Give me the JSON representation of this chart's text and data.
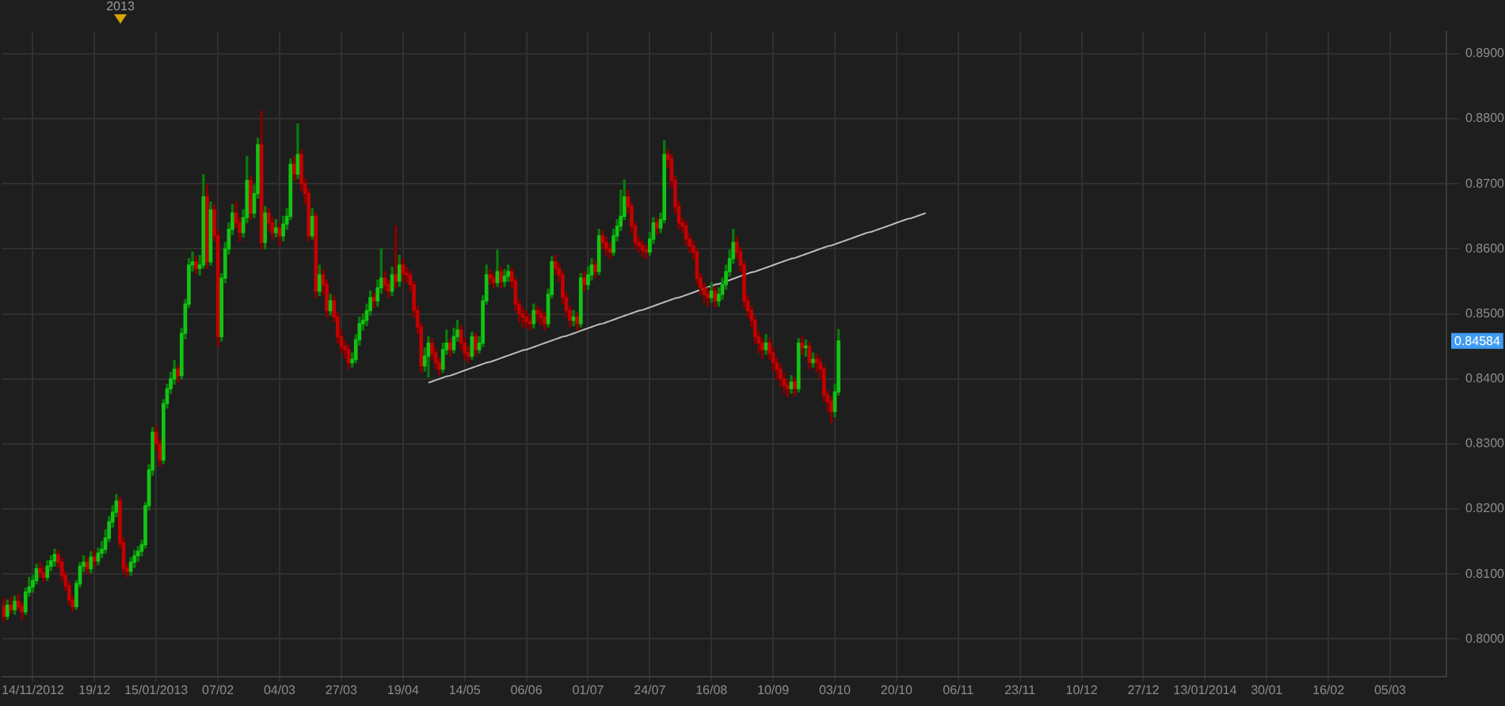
{
  "chart_data": {
    "type": "candlestick",
    "categories": [
      null,
      null,
      null,
      null,
      null,
      null,
      null,
      null,
      "14/11/2012",
      null,
      null,
      null,
      null,
      null,
      null,
      null,
      null,
      null,
      null,
      null,
      null,
      null,
      null,
      null,
      null,
      "19/12",
      null,
      null,
      null,
      null,
      null,
      null,
      null,
      null,
      null,
      null,
      null,
      null,
      null,
      null,
      null,
      null,
      "15/01/2013",
      null,
      null,
      null,
      null,
      null,
      null,
      null,
      null,
      null,
      null,
      null,
      null,
      null,
      null,
      null,
      null,
      "07/02",
      null,
      null,
      null,
      null,
      null,
      null,
      null,
      null,
      null,
      null,
      null,
      null,
      null,
      null,
      null,
      null,
      "04/03",
      null,
      null,
      null,
      null,
      null,
      null,
      null,
      null,
      null,
      null,
      null,
      null,
      null,
      null,
      null,
      null,
      "27/03",
      null,
      null,
      null,
      null,
      null,
      null,
      null,
      null,
      null,
      null,
      null,
      null,
      null,
      null,
      null,
      null,
      "19/04",
      null,
      null,
      null,
      null,
      null,
      null,
      null,
      null,
      null,
      null,
      null,
      null,
      null,
      null,
      null,
      null,
      "14/05",
      null,
      null,
      null,
      null,
      null,
      null,
      null,
      null,
      null,
      null,
      null,
      null,
      null,
      null,
      null,
      null,
      "06/06",
      null,
      null,
      null,
      null,
      null,
      null,
      null,
      null,
      null,
      null,
      null,
      null,
      null,
      null,
      null,
      null,
      "01/07",
      null,
      null,
      null,
      null,
      null,
      null,
      null,
      null,
      null,
      null,
      null,
      null,
      null,
      null,
      null,
      null,
      "24/07",
      null,
      null,
      null,
      null,
      null,
      null,
      null,
      null,
      null,
      null,
      null,
      null,
      null,
      null,
      null,
      null,
      "16/08",
      null,
      null,
      null,
      null,
      null,
      null,
      null,
      null,
      null,
      null,
      null,
      null,
      null,
      null,
      null,
      null,
      "10/09",
      null,
      null,
      null,
      null,
      null,
      null,
      null,
      null,
      null,
      null,
      null,
      null,
      null,
      null,
      null,
      null,
      "03/10",
      null,
      null,
      null,
      null,
      null,
      null,
      null,
      null,
      null,
      null,
      null,
      null,
      null,
      null,
      null,
      null,
      "20/10",
      null,
      null,
      null,
      null,
      null,
      null,
      null,
      null,
      null,
      null,
      null,
      null,
      null,
      null,
      null,
      null,
      "06/11",
      null,
      null,
      null,
      null,
      null,
      null,
      null,
      null,
      null,
      null,
      null,
      null,
      null,
      null,
      null,
      null,
      "23/11",
      null,
      null,
      null,
      null,
      null,
      null,
      null,
      null,
      null,
      null,
      null,
      null,
      null,
      null,
      null,
      null,
      "10/12",
      null,
      null,
      null,
      null,
      null,
      null,
      null,
      null,
      null,
      null,
      null,
      null,
      null,
      null,
      null,
      null,
      "27/12",
      null,
      null,
      null,
      null,
      null,
      null,
      null,
      null,
      null,
      null,
      null,
      null,
      null,
      null,
      null,
      null,
      "13/01/2014",
      null,
      null,
      null,
      null,
      null,
      null,
      null,
      null,
      null,
      null,
      null,
      null,
      null,
      null,
      null,
      null,
      "30/01",
      null,
      null,
      null,
      null,
      null,
      null,
      null,
      null,
      null,
      null,
      null,
      null,
      null,
      null,
      null,
      null,
      "16/02",
      null,
      null,
      null,
      null,
      null,
      null,
      null,
      null,
      null,
      null,
      null,
      null,
      null,
      null,
      null,
      null,
      "05/03",
      null,
      null,
      null,
      null,
      null,
      null,
      null,
      null,
      null,
      null,
      null,
      null,
      null,
      null,
      null
    ],
    "ohlc": [
      [
        0.805,
        0.8062,
        0.8028,
        0.8035
      ],
      [
        0.8035,
        0.806,
        0.803,
        0.8052
      ],
      [
        0.8052,
        0.8064,
        0.804,
        0.8045
      ],
      [
        0.8045,
        0.8066,
        0.8038,
        0.8058
      ],
      [
        0.8058,
        0.8068,
        0.8044,
        0.805
      ],
      [
        0.805,
        0.8056,
        0.803,
        0.8042
      ],
      [
        0.8042,
        0.8078,
        0.8038,
        0.8072
      ],
      [
        0.8072,
        0.8095,
        0.8066,
        0.808
      ],
      [
        0.808,
        0.8098,
        0.8072,
        0.809
      ],
      [
        0.809,
        0.8115,
        0.8085,
        0.8108
      ],
      [
        0.8108,
        0.8118,
        0.8095,
        0.8102
      ],
      [
        0.8102,
        0.811,
        0.8088,
        0.8095
      ],
      [
        0.8095,
        0.812,
        0.809,
        0.8112
      ],
      [
        0.8112,
        0.8128,
        0.8105,
        0.812
      ],
      [
        0.812,
        0.8138,
        0.8112,
        0.813
      ],
      [
        0.813,
        0.8136,
        0.811,
        0.8118
      ],
      [
        0.8118,
        0.8124,
        0.809,
        0.8098
      ],
      [
        0.8098,
        0.8104,
        0.8075,
        0.8082
      ],
      [
        0.8082,
        0.8088,
        0.8052,
        0.806
      ],
      [
        0.806,
        0.8066,
        0.8043,
        0.805
      ],
      [
        0.805,
        0.809,
        0.8046,
        0.8085
      ],
      [
        0.8085,
        0.8118,
        0.808,
        0.8112
      ],
      [
        0.8112,
        0.8128,
        0.8104,
        0.8118
      ],
      [
        0.8118,
        0.8124,
        0.81,
        0.8108
      ],
      [
        0.8108,
        0.8134,
        0.8102,
        0.8126
      ],
      [
        0.8126,
        0.8135,
        0.8112,
        0.812
      ],
      [
        0.812,
        0.814,
        0.8114,
        0.8132
      ],
      [
        0.8132,
        0.815,
        0.8125,
        0.8138
      ],
      [
        0.8138,
        0.8168,
        0.8132,
        0.8155
      ],
      [
        0.8155,
        0.8188,
        0.815,
        0.818
      ],
      [
        0.818,
        0.8205,
        0.8172,
        0.8195
      ],
      [
        0.8195,
        0.8222,
        0.8188,
        0.8212
      ],
      [
        0.8212,
        0.8218,
        0.814,
        0.8148
      ],
      [
        0.8148,
        0.8155,
        0.81,
        0.8108
      ],
      [
        0.8108,
        0.8115,
        0.8096,
        0.8104
      ],
      [
        0.8104,
        0.8125,
        0.8098,
        0.8118
      ],
      [
        0.8118,
        0.8136,
        0.811,
        0.8128
      ],
      [
        0.8128,
        0.8142,
        0.812,
        0.8135
      ],
      [
        0.8135,
        0.8152,
        0.8128,
        0.8145
      ],
      [
        0.8145,
        0.821,
        0.814,
        0.8205
      ],
      [
        0.8205,
        0.8268,
        0.8198,
        0.826
      ],
      [
        0.826,
        0.8325,
        0.8252,
        0.8318
      ],
      [
        0.8318,
        0.8328,
        0.829,
        0.83
      ],
      [
        0.83,
        0.8308,
        0.8266,
        0.8275
      ],
      [
        0.8275,
        0.8368,
        0.827,
        0.8362
      ],
      [
        0.8362,
        0.8392,
        0.8355,
        0.8385
      ],
      [
        0.8385,
        0.841,
        0.8378,
        0.84
      ],
      [
        0.84,
        0.8428,
        0.8392,
        0.8415
      ],
      [
        0.8415,
        0.842,
        0.8395,
        0.8405
      ],
      [
        0.8405,
        0.8478,
        0.84,
        0.847
      ],
      [
        0.847,
        0.8522,
        0.8462,
        0.8515
      ],
      [
        0.8515,
        0.8585,
        0.851,
        0.8575
      ],
      [
        0.8575,
        0.8595,
        0.8566,
        0.858
      ],
      [
        0.858,
        0.8588,
        0.8562,
        0.857
      ],
      [
        0.857,
        0.859,
        0.856,
        0.8575
      ],
      [
        0.8575,
        0.8714,
        0.857,
        0.868
      ],
      [
        0.868,
        0.8698,
        0.857,
        0.858
      ],
      [
        0.858,
        0.8672,
        0.8575,
        0.866
      ],
      [
        0.866,
        0.8668,
        0.8612,
        0.862
      ],
      [
        0.862,
        0.8628,
        0.845,
        0.8465
      ],
      [
        0.8465,
        0.8562,
        0.8458,
        0.8555
      ],
      [
        0.8555,
        0.861,
        0.8548,
        0.86
      ],
      [
        0.86,
        0.864,
        0.8592,
        0.863
      ],
      [
        0.863,
        0.8668,
        0.8622,
        0.8655
      ],
      [
        0.8655,
        0.8672,
        0.8632,
        0.864
      ],
      [
        0.864,
        0.8648,
        0.8612,
        0.8625
      ],
      [
        0.8625,
        0.866,
        0.8618,
        0.8648
      ],
      [
        0.8648,
        0.8742,
        0.864,
        0.8705
      ],
      [
        0.8705,
        0.8712,
        0.8645,
        0.8655
      ],
      [
        0.8655,
        0.8698,
        0.8648,
        0.8685
      ],
      [
        0.8685,
        0.877,
        0.8678,
        0.876
      ],
      [
        0.876,
        0.8812,
        0.86,
        0.861
      ],
      [
        0.861,
        0.8665,
        0.86,
        0.8655
      ],
      [
        0.8655,
        0.8662,
        0.8628,
        0.864
      ],
      [
        0.864,
        0.8648,
        0.8615,
        0.8625
      ],
      [
        0.8625,
        0.8645,
        0.8618,
        0.8632
      ],
      [
        0.8632,
        0.864,
        0.8605,
        0.862
      ],
      [
        0.862,
        0.865,
        0.8612,
        0.8638
      ],
      [
        0.8638,
        0.8662,
        0.863,
        0.865
      ],
      [
        0.865,
        0.8738,
        0.8645,
        0.873
      ],
      [
        0.873,
        0.8742,
        0.8705,
        0.8715
      ],
      [
        0.8715,
        0.8792,
        0.8708,
        0.8745
      ],
      [
        0.8745,
        0.8752,
        0.869,
        0.87
      ],
      [
        0.87,
        0.8708,
        0.867,
        0.8685
      ],
      [
        0.8685,
        0.8692,
        0.8612,
        0.862
      ],
      [
        0.862,
        0.8662,
        0.8615,
        0.865
      ],
      [
        0.865,
        0.8655,
        0.8525,
        0.8535
      ],
      [
        0.8535,
        0.8575,
        0.8528,
        0.856
      ],
      [
        0.856,
        0.8568,
        0.853,
        0.8545
      ],
      [
        0.8545,
        0.8552,
        0.8495,
        0.8505
      ],
      [
        0.8505,
        0.853,
        0.8498,
        0.852
      ],
      [
        0.852,
        0.8528,
        0.8488,
        0.8495
      ],
      [
        0.8495,
        0.8502,
        0.8455,
        0.8465
      ],
      [
        0.8465,
        0.8475,
        0.844,
        0.845
      ],
      [
        0.845,
        0.8458,
        0.8432,
        0.8445
      ],
      [
        0.8445,
        0.8452,
        0.8415,
        0.8425
      ],
      [
        0.8425,
        0.844,
        0.8418,
        0.843
      ],
      [
        0.843,
        0.8468,
        0.8425,
        0.846
      ],
      [
        0.846,
        0.8495,
        0.8452,
        0.8485
      ],
      [
        0.8485,
        0.85,
        0.8475,
        0.849
      ],
      [
        0.849,
        0.8515,
        0.8482,
        0.8505
      ],
      [
        0.8505,
        0.8535,
        0.8498,
        0.8525
      ],
      [
        0.8525,
        0.8532,
        0.851,
        0.852
      ],
      [
        0.852,
        0.8552,
        0.8512,
        0.854
      ],
      [
        0.854,
        0.86,
        0.8532,
        0.8555
      ],
      [
        0.8555,
        0.8565,
        0.8536,
        0.8545
      ],
      [
        0.8545,
        0.8552,
        0.8525,
        0.8535
      ],
      [
        0.8535,
        0.8572,
        0.8528,
        0.856
      ],
      [
        0.856,
        0.8635,
        0.854,
        0.855
      ],
      [
        0.855,
        0.859,
        0.8542,
        0.8575
      ],
      [
        0.8575,
        0.8585,
        0.855,
        0.8562
      ],
      [
        0.8562,
        0.8572,
        0.8548,
        0.856
      ],
      [
        0.856,
        0.8566,
        0.8535,
        0.8545
      ],
      [
        0.8545,
        0.855,
        0.8495,
        0.8505
      ],
      [
        0.8505,
        0.8512,
        0.847,
        0.848
      ],
      [
        0.848,
        0.8486,
        0.841,
        0.842
      ],
      [
        0.842,
        0.8448,
        0.8412,
        0.8435
      ],
      [
        0.8435,
        0.8465,
        0.8403,
        0.8455
      ],
      [
        0.8455,
        0.8462,
        0.843,
        0.844
      ],
      [
        0.844,
        0.8448,
        0.8415,
        0.8425
      ],
      [
        0.8425,
        0.8432,
        0.8406,
        0.8415
      ],
      [
        0.8415,
        0.8455,
        0.841,
        0.8445
      ],
      [
        0.8445,
        0.8475,
        0.8438,
        0.8455
      ],
      [
        0.8455,
        0.8462,
        0.8435,
        0.8445
      ],
      [
        0.8445,
        0.8478,
        0.844,
        0.8465
      ],
      [
        0.8465,
        0.849,
        0.8458,
        0.8475
      ],
      [
        0.8475,
        0.8482,
        0.8445,
        0.8455
      ],
      [
        0.8455,
        0.8462,
        0.843,
        0.844
      ],
      [
        0.844,
        0.845,
        0.8425,
        0.8435
      ],
      [
        0.8435,
        0.8472,
        0.843,
        0.8465
      ],
      [
        0.8465,
        0.847,
        0.8436,
        0.8445
      ],
      [
        0.8445,
        0.8465,
        0.844,
        0.8455
      ],
      [
        0.8455,
        0.8528,
        0.845,
        0.852
      ],
      [
        0.852,
        0.8575,
        0.8515,
        0.856
      ],
      [
        0.856,
        0.8568,
        0.8545,
        0.8555
      ],
      [
        0.8555,
        0.8562,
        0.854,
        0.8548
      ],
      [
        0.8548,
        0.8598,
        0.8542,
        0.8565
      ],
      [
        0.8565,
        0.8572,
        0.854,
        0.855
      ],
      [
        0.855,
        0.8568,
        0.8542,
        0.8558
      ],
      [
        0.8558,
        0.8575,
        0.855,
        0.8565
      ],
      [
        0.8565,
        0.857,
        0.854,
        0.855
      ],
      [
        0.855,
        0.8556,
        0.8505,
        0.8515
      ],
      [
        0.8515,
        0.8522,
        0.8488,
        0.85
      ],
      [
        0.85,
        0.851,
        0.848,
        0.8495
      ],
      [
        0.8495,
        0.8505,
        0.8478,
        0.8488
      ],
      [
        0.8488,
        0.8498,
        0.8475,
        0.8485
      ],
      [
        0.8485,
        0.8515,
        0.8478,
        0.8505
      ],
      [
        0.8505,
        0.8512,
        0.8488,
        0.85
      ],
      [
        0.85,
        0.8508,
        0.8482,
        0.8495
      ],
      [
        0.8495,
        0.8502,
        0.8475,
        0.8485
      ],
      [
        0.8485,
        0.8538,
        0.848,
        0.853
      ],
      [
        0.853,
        0.8588,
        0.8525,
        0.858
      ],
      [
        0.858,
        0.859,
        0.856,
        0.857
      ],
      [
        0.857,
        0.8578,
        0.855,
        0.856
      ],
      [
        0.856,
        0.8566,
        0.8515,
        0.8525
      ],
      [
        0.8525,
        0.8532,
        0.8495,
        0.8505
      ],
      [
        0.8505,
        0.8512,
        0.848,
        0.849
      ],
      [
        0.849,
        0.8505,
        0.8482,
        0.8495
      ],
      [
        0.8495,
        0.8502,
        0.8475,
        0.8485
      ],
      [
        0.8485,
        0.8562,
        0.848,
        0.8555
      ],
      [
        0.8555,
        0.8565,
        0.8535,
        0.8545
      ],
      [
        0.8545,
        0.8572,
        0.8538,
        0.856
      ],
      [
        0.856,
        0.8585,
        0.8552,
        0.8575
      ],
      [
        0.8575,
        0.8582,
        0.8555,
        0.8565
      ],
      [
        0.8565,
        0.863,
        0.856,
        0.862
      ],
      [
        0.862,
        0.8628,
        0.86,
        0.861
      ],
      [
        0.861,
        0.8618,
        0.859,
        0.86
      ],
      [
        0.86,
        0.8608,
        0.8585,
        0.8595
      ],
      [
        0.8595,
        0.863,
        0.859,
        0.862
      ],
      [
        0.862,
        0.8645,
        0.8612,
        0.8635
      ],
      [
        0.8635,
        0.869,
        0.8628,
        0.865
      ],
      [
        0.865,
        0.8706,
        0.8645,
        0.868
      ],
      [
        0.868,
        0.869,
        0.8655,
        0.8665
      ],
      [
        0.8665,
        0.8672,
        0.8625,
        0.8635
      ],
      [
        0.8635,
        0.864,
        0.86,
        0.861
      ],
      [
        0.861,
        0.8618,
        0.8595,
        0.8605
      ],
      [
        0.8605,
        0.8612,
        0.8588,
        0.8598
      ],
      [
        0.8598,
        0.8606,
        0.8585,
        0.8595
      ],
      [
        0.8595,
        0.8625,
        0.859,
        0.8615
      ],
      [
        0.8615,
        0.8648,
        0.8608,
        0.864
      ],
      [
        0.864,
        0.8648,
        0.8622,
        0.8632
      ],
      [
        0.8632,
        0.8655,
        0.8625,
        0.8645
      ],
      [
        0.8645,
        0.8766,
        0.864,
        0.8745
      ],
      [
        0.8745,
        0.8752,
        0.8725,
        0.8738
      ],
      [
        0.8738,
        0.8745,
        0.8695,
        0.8705
      ],
      [
        0.8705,
        0.8712,
        0.8655,
        0.8665
      ],
      [
        0.8665,
        0.8672,
        0.863,
        0.864
      ],
      [
        0.864,
        0.8648,
        0.8625,
        0.8635
      ],
      [
        0.8635,
        0.8642,
        0.8605,
        0.8615
      ],
      [
        0.8615,
        0.8622,
        0.8595,
        0.8605
      ],
      [
        0.8605,
        0.8612,
        0.8585,
        0.8595
      ],
      [
        0.8595,
        0.86,
        0.8545,
        0.8555
      ],
      [
        0.8555,
        0.8562,
        0.853,
        0.854
      ],
      [
        0.854,
        0.8548,
        0.8518,
        0.853
      ],
      [
        0.853,
        0.854,
        0.8512,
        0.8525
      ],
      [
        0.8525,
        0.8548,
        0.8518,
        0.8535
      ],
      [
        0.8535,
        0.8542,
        0.851,
        0.852
      ],
      [
        0.852,
        0.854,
        0.8512,
        0.853
      ],
      [
        0.853,
        0.8555,
        0.8522,
        0.8545
      ],
      [
        0.8545,
        0.8575,
        0.8538,
        0.8565
      ],
      [
        0.8565,
        0.8598,
        0.8558,
        0.8585
      ],
      [
        0.8585,
        0.863,
        0.8578,
        0.861
      ],
      [
        0.861,
        0.8618,
        0.8585,
        0.8595
      ],
      [
        0.8595,
        0.8602,
        0.8565,
        0.8575
      ],
      [
        0.8575,
        0.858,
        0.851,
        0.852
      ],
      [
        0.852,
        0.8528,
        0.8495,
        0.8505
      ],
      [
        0.8505,
        0.8512,
        0.848,
        0.849
      ],
      [
        0.849,
        0.8496,
        0.8455,
        0.8465
      ],
      [
        0.8465,
        0.8472,
        0.844,
        0.8455
      ],
      [
        0.8455,
        0.8462,
        0.8432,
        0.8445
      ],
      [
        0.8445,
        0.8468,
        0.8438,
        0.8455
      ],
      [
        0.8455,
        0.8462,
        0.843,
        0.844
      ],
      [
        0.844,
        0.8448,
        0.8412,
        0.8425
      ],
      [
        0.8425,
        0.8432,
        0.84,
        0.8415
      ],
      [
        0.8415,
        0.8422,
        0.8388,
        0.84
      ],
      [
        0.84,
        0.8408,
        0.8378,
        0.839
      ],
      [
        0.839,
        0.8398,
        0.8372,
        0.8385
      ],
      [
        0.8385,
        0.8405,
        0.8378,
        0.8395
      ],
      [
        0.8395,
        0.8402,
        0.8374,
        0.8385
      ],
      [
        0.8385,
        0.8462,
        0.838,
        0.8455
      ],
      [
        0.8455,
        0.8465,
        0.8438,
        0.8448
      ],
      [
        0.8448,
        0.846,
        0.8435,
        0.845
      ],
      [
        0.845,
        0.8456,
        0.8415,
        0.8425
      ],
      [
        0.8425,
        0.844,
        0.8418,
        0.843
      ],
      [
        0.843,
        0.8438,
        0.841,
        0.8425
      ],
      [
        0.8425,
        0.8432,
        0.84,
        0.8415
      ],
      [
        0.8415,
        0.842,
        0.8365,
        0.8375
      ],
      [
        0.8375,
        0.8382,
        0.835,
        0.8365
      ],
      [
        0.8365,
        0.8372,
        0.8333,
        0.835
      ],
      [
        0.835,
        0.8392,
        0.8342,
        0.838
      ],
      [
        0.838,
        0.8476,
        0.8375,
        0.84584
      ],
      null,
      null,
      null,
      null,
      null,
      null,
      null,
      null,
      null,
      null,
      null,
      null,
      null,
      null,
      null,
      null,
      null,
      null,
      null,
      null,
      null,
      null,
      null,
      null,
      null,
      null,
      null,
      null,
      null,
      null,
      null,
      null,
      null,
      null,
      null,
      null,
      null,
      null,
      null,
      null,
      null,
      null,
      null,
      null,
      null,
      null,
      null,
      null,
      null,
      null,
      null,
      null,
      null,
      null,
      null,
      null,
      null,
      null,
      null,
      null,
      null,
      null,
      null,
      null,
      null,
      null,
      null,
      null,
      null,
      null,
      null,
      null,
      null,
      null,
      null,
      null,
      null,
      null,
      null,
      null,
      null,
      null,
      null,
      null,
      null,
      null,
      null,
      null,
      null,
      null,
      null,
      null,
      null,
      null,
      null,
      null,
      null,
      null,
      null,
      null,
      null,
      null,
      null,
      null,
      null,
      null,
      null,
      null,
      null,
      null,
      null,
      null,
      null,
      null,
      null,
      null,
      null,
      null,
      null,
      null,
      null,
      null,
      null,
      null,
      null,
      null,
      null,
      null,
      null,
      null,
      null,
      null,
      null,
      null,
      null,
      null,
      null,
      null,
      null,
      null,
      null,
      null,
      null,
      null,
      null,
      null,
      null,
      null,
      null,
      null,
      null,
      null,
      null,
      null,
      null,
      null,
      null,
      null,
      null,
      null,
      null,
      null,
      null,
      null,
      null,
      null,
      null
    ],
    "series": [
      {
        "type": "line",
        "color": "#bdbdbd",
        "values": [
          null,
          null,
          null,
          null,
          null,
          null,
          null,
          null,
          null,
          null,
          null,
          null,
          null,
          null,
          null,
          null,
          null,
          null,
          null,
          null,
          null,
          null,
          null,
          null,
          null,
          null,
          null,
          null,
          null,
          null,
          null,
          null,
          null,
          null,
          null,
          null,
          null,
          null,
          null,
          null,
          null,
          null,
          null,
          null,
          null,
          null,
          null,
          null,
          null,
          null,
          null,
          null,
          null,
          null,
          null,
          null,
          null,
          null,
          null,
          null,
          null,
          null,
          null,
          null,
          null,
          null,
          null,
          null,
          null,
          null,
          null,
          null,
          null,
          null,
          null,
          null,
          null,
          null,
          null,
          null,
          null,
          null,
          null,
          null,
          null,
          null,
          null,
          null,
          null,
          null,
          null,
          null,
          null,
          null,
          null,
          null,
          null,
          null,
          null,
          null,
          null,
          null,
          null,
          null,
          null,
          null,
          null,
          null,
          null,
          null,
          null,
          null,
          null,
          null,
          null,
          null,
          null,
          0.8394,
          0.8396,
          0.8398,
          0.84,
          0.8402,
          0.8404,
          0.8405,
          0.8407,
          0.8409,
          0.8411,
          0.8413,
          0.8415,
          0.8417,
          0.8419,
          0.8421,
          0.8423,
          0.8425,
          0.8426,
          0.8428,
          0.843,
          0.8432,
          0.8434,
          0.8436,
          0.8438,
          0.844,
          0.8442,
          0.8444,
          0.8445,
          0.8447,
          0.8449,
          0.8451,
          0.8453,
          0.8455,
          0.8457,
          0.8459,
          0.8461,
          0.8463,
          0.8465,
          0.8466,
          0.8468,
          0.847,
          0.8472,
          0.8474,
          0.8476,
          0.8478,
          0.848,
          0.8482,
          0.8484,
          0.8485,
          0.8487,
          0.8489,
          0.8491,
          0.8493,
          0.8495,
          0.8497,
          0.8499,
          0.8501,
          0.8503,
          0.8505,
          0.8506,
          0.8508,
          0.851,
          0.8512,
          0.8514,
          0.8516,
          0.8518,
          0.852,
          0.8522,
          0.8524,
          0.8525,
          0.8527,
          0.8529,
          0.8531,
          0.8533,
          0.8535,
          0.8537,
          0.8539,
          0.8541,
          0.8543,
          0.8545,
          0.8546,
          0.8548,
          0.855,
          0.8552,
          0.8554,
          0.8556,
          0.8558,
          0.856,
          0.8562,
          0.8564,
          0.8565,
          0.8567,
          0.8569,
          0.8571,
          0.8573,
          0.8575,
          0.8577,
          0.8579,
          0.8581,
          0.8583,
          0.8585,
          0.8586,
          0.8588,
          0.859,
          0.8592,
          0.8594,
          0.8596,
          0.8598,
          0.86,
          0.8602,
          0.8604,
          0.8605,
          0.8607,
          0.8609,
          0.8611,
          0.8613,
          0.8615,
          0.8617,
          0.8619,
          0.8621,
          0.8623,
          0.8625,
          0.8626,
          0.8628,
          0.863,
          0.8632,
          0.8634,
          0.8636,
          0.8638,
          0.864,
          0.8642,
          0.8644,
          0.8646,
          0.8647,
          0.8649,
          0.8651,
          0.8653,
          0.8655,
          null,
          null,
          null,
          null,
          null,
          null,
          null,
          null,
          null,
          null,
          null,
          null,
          null,
          null,
          null,
          null,
          null,
          null,
          null,
          null,
          null,
          null,
          null,
          null,
          null,
          null,
          null,
          null,
          null,
          null,
          null,
          null,
          null,
          null,
          null,
          null,
          null,
          null,
          null,
          null,
          null,
          null,
          null,
          null,
          null,
          null,
          null,
          null,
          null,
          null,
          null,
          null,
          null,
          null,
          null,
          null,
          null,
          null,
          null,
          null,
          null,
          null,
          null,
          null,
          null,
          null,
          null,
          null,
          null,
          null,
          null,
          null,
          null,
          null,
          null,
          null,
          null,
          null,
          null,
          null,
          null,
          null,
          null,
          null,
          null,
          null,
          null,
          null,
          null,
          null,
          null,
          null,
          null,
          null,
          null,
          null,
          null,
          null,
          null,
          null,
          null,
          null,
          null,
          null,
          null,
          null,
          null,
          null,
          null,
          null,
          null,
          null,
          null,
          null,
          null,
          null,
          null,
          null,
          null,
          null,
          null,
          null,
          null,
          null,
          null,
          null,
          null,
          null,
          null,
          null,
          null,
          null,
          null,
          null,
          null,
          null,
          null,
          null,
          null,
          null,
          null,
          null,
          null
        ]
      }
    ],
    "ylim": [
      0.7942,
      0.8934
    ],
    "yticks": [
      {
        "value": 0.8,
        "label": "0.8000"
      },
      {
        "value": 0.81,
        "label": "0.8100"
      },
      {
        "value": 0.82,
        "label": "0.8200"
      },
      {
        "value": 0.83,
        "label": "0.8300"
      },
      {
        "value": 0.84,
        "label": "0.8400"
      },
      {
        "value": 0.85,
        "label": "0.8500"
      },
      {
        "value": 0.86,
        "label": "0.8600"
      },
      {
        "value": 0.87,
        "label": "0.8700"
      },
      {
        "value": 0.88,
        "label": "0.8800"
      },
      {
        "value": 0.89,
        "label": "0.8900"
      }
    ],
    "grid": true,
    "annotations": [
      "2013",
      "0.84584"
    ]
  }
}
